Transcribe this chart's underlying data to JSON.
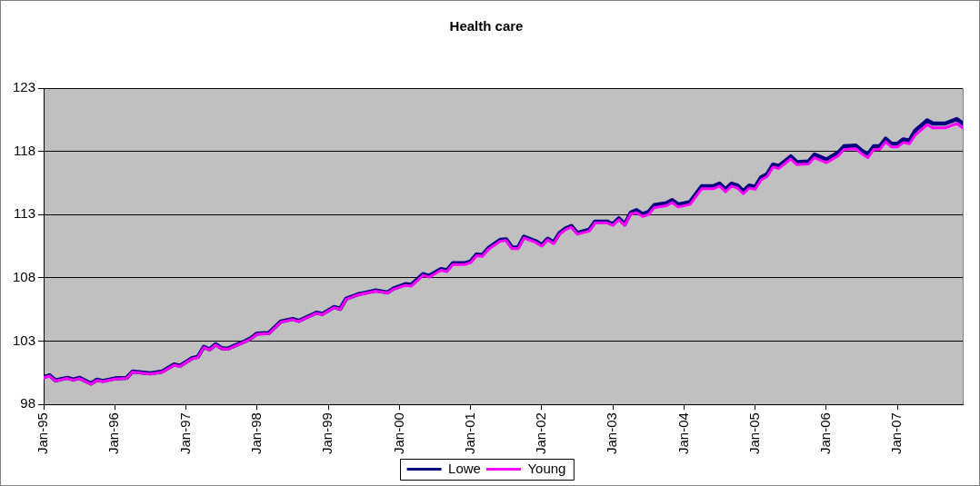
{
  "chart_data": {
    "type": "line",
    "title": "Health care",
    "x": [
      "1995-01",
      "1995-02",
      "1995-03",
      "1995-05",
      "1995-06",
      "1995-07",
      "1995-09",
      "1995-10",
      "1995-11",
      "1996-01",
      "1996-03",
      "1996-04",
      "1996-07",
      "1996-09",
      "1996-11",
      "1996-12",
      "1997-02",
      "1997-03",
      "1997-04",
      "1997-05",
      "1997-06",
      "1997-07",
      "1997-08",
      "1997-11",
      "1997-12",
      "1998-01",
      "1998-03",
      "1998-05",
      "1998-07",
      "1998-08",
      "1998-11",
      "1998-12",
      "1999-02",
      "1999-03",
      "1999-04",
      "1999-06",
      "1999-07",
      "1999-09",
      "1999-11",
      "1999-12",
      "2000-02",
      "2000-03",
      "2000-05",
      "2000-06",
      "2000-08",
      "2000-09",
      "2000-10",
      "2000-12",
      "2001-01",
      "2001-02",
      "2001-03",
      "2001-04",
      "2001-06",
      "2001-07",
      "2001-08",
      "2001-09",
      "2001-10",
      "2001-12",
      "2002-01",
      "2002-02",
      "2002-03",
      "2002-04",
      "2002-05",
      "2002-06",
      "2002-07",
      "2002-09",
      "2002-10",
      "2002-12",
      "2003-01",
      "2003-02",
      "2003-03",
      "2003-04",
      "2003-05",
      "2003-06",
      "2003-07",
      "2003-08",
      "2003-10",
      "2003-11",
      "2003-12",
      "2004-02",
      "2004-04",
      "2004-06",
      "2004-07",
      "2004-08",
      "2004-09",
      "2004-10",
      "2004-11",
      "2004-12",
      "2005-01",
      "2005-02",
      "2005-03",
      "2005-04",
      "2005-05",
      "2005-07",
      "2005-08",
      "2005-10",
      "2005-11",
      "2006-01",
      "2006-03",
      "2006-04",
      "2006-06",
      "2006-07",
      "2006-08",
      "2006-09",
      "2006-10",
      "2006-11",
      "2006-12",
      "2007-01",
      "2007-02",
      "2007-03",
      "2007-04",
      "2007-06",
      "2007-07",
      "2007-08",
      "2007-09",
      "2007-11",
      "2007-12"
    ],
    "series": [
      {
        "name": "Lowe",
        "color": "#000080",
        "values": [
          100.15,
          100.3,
          99.9,
          100.1,
          99.95,
          100.1,
          99.65,
          99.95,
          99.85,
          100.05,
          100.1,
          100.6,
          100.45,
          100.6,
          101.15,
          101.05,
          101.65,
          101.75,
          102.55,
          102.35,
          102.75,
          102.45,
          102.4,
          103.0,
          103.25,
          103.6,
          103.65,
          104.55,
          104.75,
          104.6,
          105.25,
          105.15,
          105.7,
          105.55,
          106.35,
          106.7,
          106.8,
          107.0,
          106.85,
          107.15,
          107.5,
          107.45,
          108.3,
          108.15,
          108.7,
          108.6,
          109.15,
          109.15,
          109.3,
          109.85,
          109.8,
          110.35,
          111.0,
          111.05,
          110.4,
          110.4,
          111.25,
          110.9,
          110.6,
          111.1,
          110.8,
          111.55,
          111.9,
          112.1,
          111.55,
          111.8,
          112.45,
          112.45,
          112.25,
          112.7,
          112.25,
          113.15,
          113.35,
          113.05,
          113.2,
          113.75,
          113.9,
          114.15,
          113.8,
          114.0,
          115.25,
          115.25,
          115.45,
          115.0,
          115.45,
          115.3,
          114.85,
          115.3,
          115.2,
          115.95,
          116.2,
          116.95,
          116.85,
          117.6,
          117.15,
          117.2,
          117.75,
          117.35,
          117.9,
          118.4,
          118.45,
          118.05,
          117.75,
          118.4,
          118.4,
          119.0,
          118.6,
          118.6,
          118.95,
          118.85,
          119.65,
          120.45,
          120.2,
          120.2,
          120.2,
          120.55,
          120.2
        ]
      },
      {
        "name": "Young",
        "color": "#ff00ff",
        "values": [
          100.1,
          100.25,
          99.85,
          100.05,
          99.9,
          100.05,
          99.6,
          99.9,
          99.8,
          100.0,
          100.05,
          100.55,
          100.4,
          100.55,
          101.1,
          101.0,
          101.6,
          101.7,
          102.5,
          102.3,
          102.7,
          102.4,
          102.35,
          102.95,
          103.2,
          103.55,
          103.6,
          104.5,
          104.7,
          104.55,
          105.2,
          105.1,
          105.65,
          105.5,
          106.3,
          106.65,
          106.75,
          106.95,
          106.8,
          107.1,
          107.4,
          107.35,
          108.2,
          108.05,
          108.6,
          108.5,
          109.05,
          109.05,
          109.2,
          109.75,
          109.7,
          110.25,
          110.9,
          110.95,
          110.3,
          110.3,
          111.15,
          110.8,
          110.5,
          111.0,
          110.7,
          111.45,
          111.8,
          112.0,
          111.45,
          111.7,
          112.35,
          112.35,
          112.15,
          112.6,
          112.15,
          113.05,
          113.15,
          112.85,
          113.0,
          113.55,
          113.7,
          113.95,
          113.6,
          113.8,
          115.05,
          115.05,
          115.25,
          114.8,
          115.25,
          115.1,
          114.65,
          115.1,
          115.0,
          115.75,
          116.0,
          116.75,
          116.65,
          117.4,
          116.95,
          117.0,
          117.5,
          117.1,
          117.65,
          118.15,
          118.2,
          117.8,
          117.5,
          118.15,
          118.15,
          118.75,
          118.35,
          118.35,
          118.7,
          118.6,
          119.3,
          120.1,
          119.85,
          119.85,
          119.85,
          120.2,
          119.85
        ]
      }
    ],
    "xlim": [
      "1995-01",
      "2007-12"
    ],
    "xticks": [
      {
        "value": "1995-01",
        "label": "Jan-95"
      },
      {
        "value": "1996-01",
        "label": "Jan-96"
      },
      {
        "value": "1997-01",
        "label": "Jan-97"
      },
      {
        "value": "1998-01",
        "label": "Jan-98"
      },
      {
        "value": "1999-01",
        "label": "Jan-99"
      },
      {
        "value": "2000-01",
        "label": "Jan-00"
      },
      {
        "value": "2001-01",
        "label": "Jan-01"
      },
      {
        "value": "2002-01",
        "label": "Jan-02"
      },
      {
        "value": "2003-01",
        "label": "Jan-03"
      },
      {
        "value": "2004-01",
        "label": "Jan-04"
      },
      {
        "value": "2005-01",
        "label": "Jan-05"
      },
      {
        "value": "2006-01",
        "label": "Jan-06"
      },
      {
        "value": "2007-01",
        "label": "Jan-07"
      }
    ],
    "ylim": [
      98,
      123
    ],
    "yticks": [
      98,
      103,
      108,
      113,
      118,
      123
    ],
    "grid": "y",
    "legend": "bottom",
    "marker": "none",
    "line_style": "solid"
  }
}
